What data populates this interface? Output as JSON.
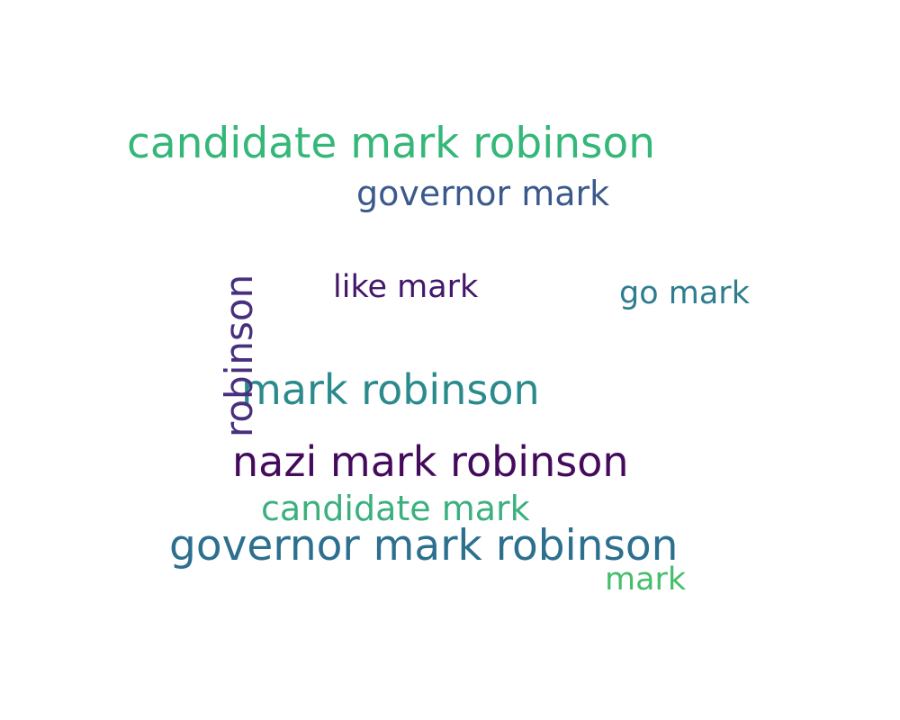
{
  "words": [
    {
      "text": "candidate mark robinson",
      "color": "#35b779"
    },
    {
      "text": "governor mark",
      "color": "#3b5a8c"
    },
    {
      "text": "like mark",
      "color": "#44176a"
    },
    {
      "text": "go mark",
      "color": "#2e7d8e"
    },
    {
      "text": "mark robinson",
      "color": "#2a8a8c"
    },
    {
      "text": "nazi mark robinson",
      "color": "#440a5c"
    },
    {
      "text": "candidate mark",
      "color": "#3bb07e"
    },
    {
      "text": "governor mark robinson",
      "color": "#2c6f8e"
    },
    {
      "text": "mark",
      "color": "#45bf6c"
    },
    {
      "text": "robinson",
      "color": "#48307e"
    }
  ]
}
